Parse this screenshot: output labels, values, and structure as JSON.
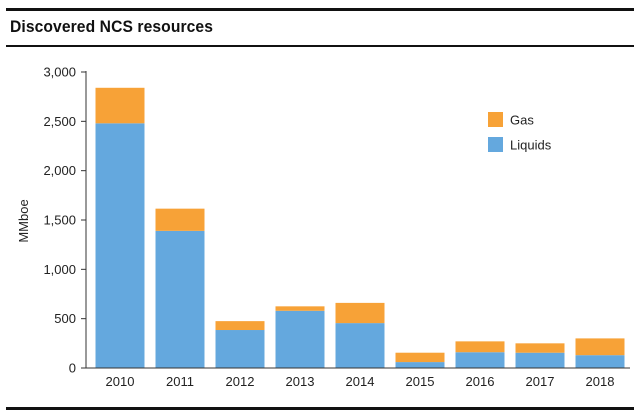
{
  "chart_data": {
    "type": "bar",
    "stacked": true,
    "title": "Discovered NCS resources",
    "xlabel": "",
    "ylabel": "MMboe",
    "ylim": [
      0,
      3000
    ],
    "yticks": [
      0,
      500,
      1000,
      1500,
      2000,
      2500,
      3000
    ],
    "ytick_labels": [
      "0",
      "500",
      "1,000",
      "1,500",
      "2,000",
      "2,500",
      "3,000"
    ],
    "categories": [
      "2010",
      "2011",
      "2012",
      "2013",
      "2014",
      "2015",
      "2016",
      "2017",
      "2018"
    ],
    "series": [
      {
        "name": "Liquids",
        "color": "#64a8de",
        "values": [
          2480,
          1390,
          385,
          580,
          455,
          60,
          160,
          155,
          130
        ]
      },
      {
        "name": "Gas",
        "color": "#f7a237",
        "values": [
          360,
          225,
          90,
          45,
          205,
          95,
          110,
          95,
          170
        ]
      }
    ],
    "legend": {
      "position": "top-right",
      "order": [
        "Gas",
        "Liquids"
      ]
    },
    "grid": false
  }
}
